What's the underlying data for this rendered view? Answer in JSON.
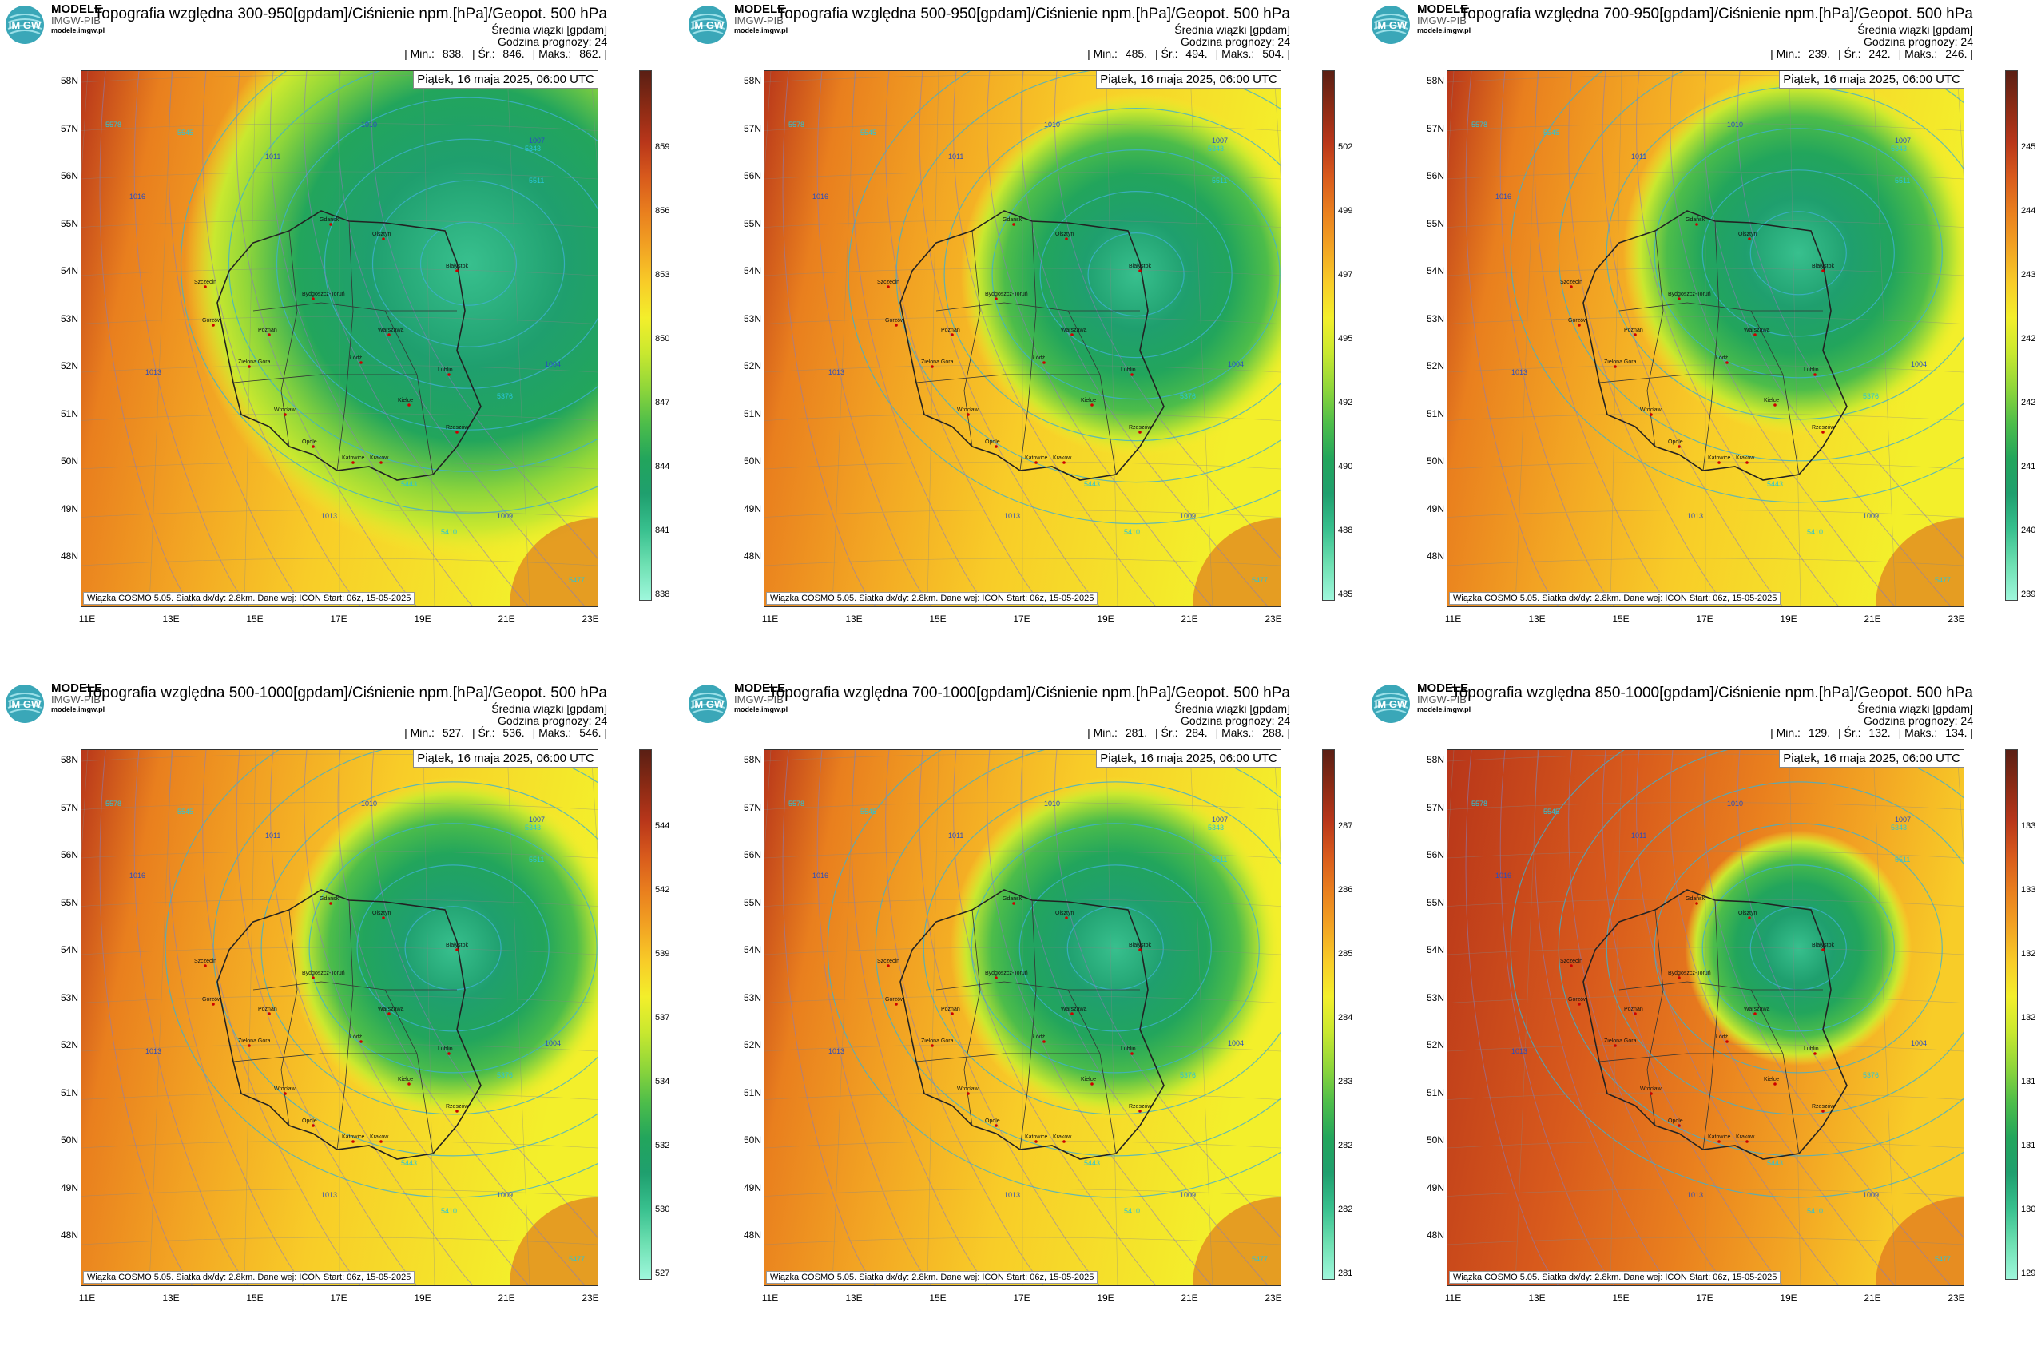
{
  "brand": {
    "line1": "MODELE",
    "line2": "IMGW-PIB",
    "line3": "modele.imgw.pl",
    "logo_text": "IM GW"
  },
  "common": {
    "subtitle1": "Średnia wiązki [gpdam]",
    "subtitle2": "Godzina prognozy: 24",
    "date": "Piątek, 16 maja 2025, 06:00 UTC",
    "footer": "Wiązka COSMO 5.05. Siatka dx/dy: 2.8km. Dane wej: ICON Start: 06z, 15-05-2025",
    "min_label": "| Min.:",
    "avg_label": "| Śr.:",
    "max_label": "| Maks.:",
    "lat_labels": [
      "58N",
      "57N",
      "56N",
      "55N",
      "54N",
      "53N",
      "52N",
      "51N",
      "50N",
      "49N",
      "48N"
    ],
    "lon_labels": [
      "11E",
      "13E",
      "15E",
      "17E",
      "19E",
      "21E",
      "23E"
    ],
    "cities": [
      "Gdańsk",
      "Olsztyn",
      "Szczecin",
      "Bydgoszcz-Toruń",
      "Białystok",
      "Gorzów",
      "Poznań",
      "Warszawa",
      "Zielona Góra",
      "Łódź",
      "Lublin",
      "Wrocław",
      "Kielce",
      "Opole",
      "Rzeszów",
      "Katowice",
      "Kraków"
    ],
    "isobars": [
      "1016",
      "1013",
      "1011",
      "1010",
      "1007",
      "1004",
      "1009",
      "1013",
      "1011"
    ],
    "geopot": [
      "5578",
      "5545",
      "5511",
      "5477",
      "5443",
      "5410",
      "5376",
      "5343"
    ]
  },
  "panels": [
    {
      "title": "Topografia względna 300-950[gpdam]/Ciśnienie npm.[hPa]/Geopot. 500 hPa",
      "min": "838.",
      "avg": "846.",
      "max": "862. |",
      "ticks": [
        "859",
        "856",
        "853",
        "850",
        "847",
        "844",
        "841",
        "838"
      ],
      "low_center": [
        0.75,
        0.36
      ],
      "low_size": 0.55,
      "style": "wide"
    },
    {
      "title": "Topografia względna 500-950[gpdam]/Ciśnienie npm.[hPa]/Geopot. 500 hPa",
      "min": "485.",
      "avg": "494.",
      "max": "504. |",
      "ticks": [
        "502",
        "499",
        "497",
        "495",
        "492",
        "490",
        "488",
        "485"
      ],
      "low_center": [
        0.72,
        0.38
      ],
      "low_size": 0.34,
      "style": "mid"
    },
    {
      "title": "Topografia względna 700-950[gpdam]/Ciśnienie npm.[hPa]/Geopot. 500 hPa",
      "min": "239.",
      "avg": "242.",
      "max": "246. |",
      "ticks": [
        "245",
        "244",
        "243",
        "242",
        "242",
        "241",
        "240",
        "239"
      ],
      "low_center": [
        0.68,
        0.34
      ],
      "low_size": 0.34,
      "style": "mid"
    },
    {
      "title": "Topografia względna 500-1000[gpdam]/Ciśnienie npm.[hPa]/Geopot. 500 hPa",
      "min": "527.",
      "avg": "536.",
      "max": "546. |",
      "ticks": [
        "544",
        "542",
        "539",
        "537",
        "534",
        "532",
        "530",
        "527"
      ],
      "low_center": [
        0.72,
        0.37
      ],
      "low_size": 0.32,
      "style": "mid"
    },
    {
      "title": "Topografia względna 700-1000[gpdam]/Ciśnienie npm.[hPa]/Geopot. 500 hPa",
      "min": "281.",
      "avg": "284.",
      "max": "288. |",
      "ticks": [
        "287",
        "286",
        "285",
        "284",
        "283",
        "282",
        "282",
        "281"
      ],
      "low_center": [
        0.68,
        0.37
      ],
      "low_size": 0.32,
      "style": "mid"
    },
    {
      "title": "Topografia względna 850-1000[gpdam]/Ciśnienie npm.[hPa]/Geopot. 500 hPa",
      "min": "129.",
      "avg": "132.",
      "max": "134. |",
      "ticks": [
        "133",
        "133",
        "132",
        "132",
        "131",
        "131",
        "130",
        "129"
      ],
      "low_center": [
        0.68,
        0.37
      ],
      "low_size": 0.22,
      "style": "warm"
    }
  ],
  "colors": {
    "scale": [
      "#5a1f14",
      "#8a2a14",
      "#b8361a",
      "#d85a1c",
      "#e97f1e",
      "#f2a323",
      "#f8cc28",
      "#f3ef2b",
      "#c9e82f",
      "#8fd63a",
      "#4dbd4a",
      "#22a55c",
      "#1f9f6e",
      "#38c08e",
      "#6ee0b2",
      "#9ff7dc"
    ]
  }
}
